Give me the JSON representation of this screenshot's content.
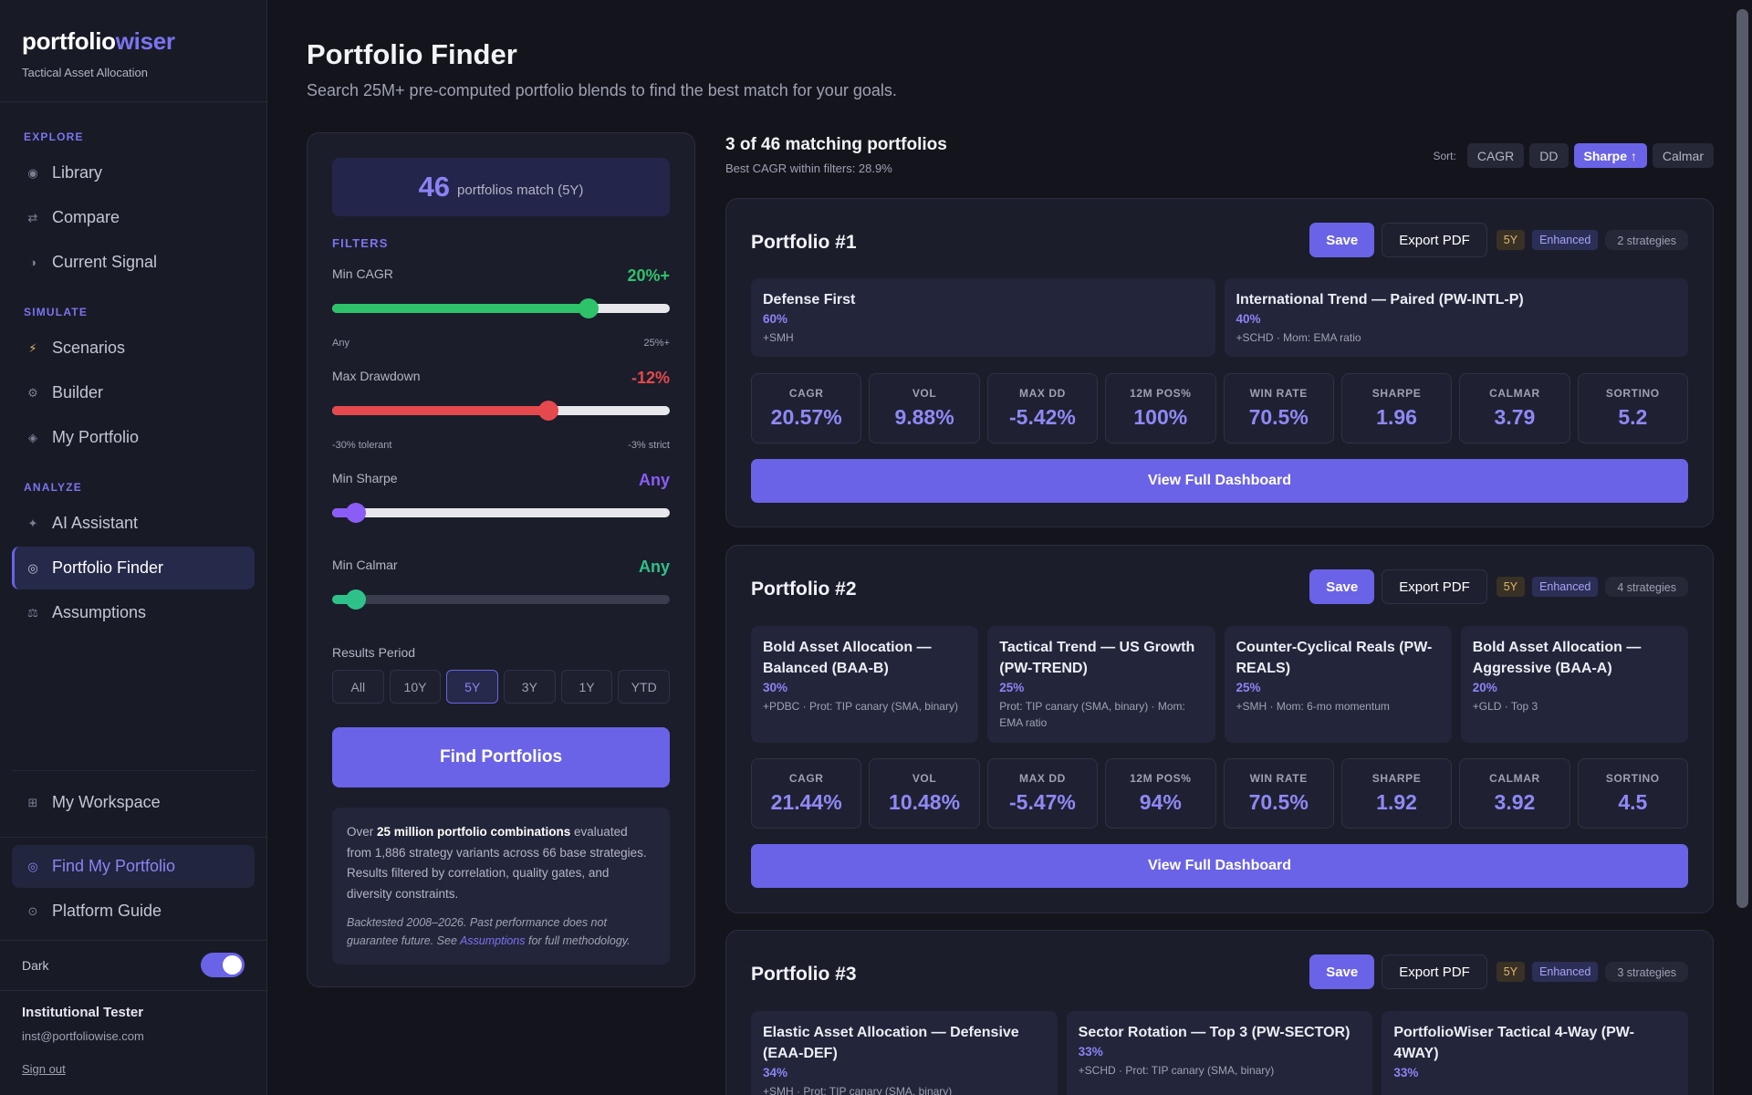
{
  "brand": {
    "part1": "portfolio",
    "part2": "wiser",
    "subtitle": "Tactical Asset Allocation"
  },
  "sidebar": {
    "sections": {
      "explore": "EXPLORE",
      "simulate": "SIMULATE",
      "analyze": "ANALYZE"
    },
    "items": [
      {
        "label": "Library",
        "icon": "radio-dot-icon"
      },
      {
        "label": "Compare",
        "icon": "swap-arrows-icon"
      },
      {
        "label": "Current Signal",
        "icon": "half-circle-icon"
      },
      {
        "label": "Scenarios",
        "icon": "lightning-icon"
      },
      {
        "label": "Builder",
        "icon": "gear-icon"
      },
      {
        "label": "My Portfolio",
        "icon": "diamond-icon"
      },
      {
        "label": "AI Assistant",
        "icon": "sparkle-icon"
      },
      {
        "label": "Portfolio Finder",
        "icon": "target-icon",
        "active": true
      },
      {
        "label": "Assumptions",
        "icon": "scale-icon"
      },
      {
        "label": "My Workspace",
        "icon": "grid-icon"
      },
      {
        "label": "Find My Portfolio",
        "icon": "target-icon"
      },
      {
        "label": "Platform Guide",
        "icon": "compass-icon"
      }
    ],
    "dark_label": "Dark",
    "dark_mode": true,
    "user_name": "Institutional Tester",
    "user_email": "inst@portfoliowise.com",
    "sign_out": "Sign out"
  },
  "header": {
    "title": "Portfolio Finder",
    "subtitle": "Search 25M+ pre-computed portfolio blends to find the best match for your goals."
  },
  "filters": {
    "match_count": "46",
    "match_text": "portfolios match (5Y)",
    "title": "FILTERS",
    "min_cagr": {
      "label": "Min CAGR",
      "value": "20%+",
      "level": 0.76,
      "left_note": "Any",
      "right_note": "25%+"
    },
    "max_drawdown": {
      "label": "Max Drawdown",
      "value": "-12%",
      "level": 0.64,
      "left_note": "-30% tolerant",
      "right_note": "-3% strict"
    },
    "min_sharpe": {
      "label": "Min Sharpe",
      "value": "Any",
      "level": 0.07
    },
    "min_calmar": {
      "label": "Min Calmar",
      "value": "Any",
      "level": 0.07
    },
    "period_label": "Results Period",
    "periods": [
      "All",
      "10Y",
      "5Y",
      "3Y",
      "1Y",
      "YTD"
    ],
    "active_period": "5Y",
    "find_button": "Find Portfolios",
    "info": {
      "pre": "Over ",
      "bold": "25 million portfolio combinations",
      "post": " evaluated from 1,886 strategy variants across 66 base strategies. Results filtered by correlation, quality gates, and diversity constraints.",
      "note_pre": "Backtested 2008–2026. Past performance does not guarantee future. See ",
      "note_link": "Assumptions",
      "note_post": " for full methodology."
    }
  },
  "results": {
    "heading": "3 of 46 matching portfolios",
    "subheading": "Best CAGR within filters: 28.9%",
    "sort_label": "Sort:",
    "sort_options": [
      "CAGR",
      "DD",
      "Sharpe ↑",
      "Calmar"
    ],
    "active_sort": "Sharpe ↑",
    "save_label": "Save",
    "export_label": "Export PDF",
    "period_tag": "5Y",
    "enhanced_tag": "Enhanced",
    "dashboard_label": "View Full Dashboard",
    "metric_labels": [
      "CAGR",
      "VOL",
      "MAX DD",
      "12M POS%",
      "WIN RATE",
      "SHARPE",
      "CALMAR",
      "SORTINO"
    ],
    "portfolios": [
      {
        "title": "Portfolio #1",
        "strategies_tag": "2 strategies",
        "strategies": [
          {
            "name": "Defense First",
            "pct": "60%",
            "meta": "+SMH"
          },
          {
            "name": "International Trend — Paired (PW-INTL-P)",
            "pct": "40%",
            "meta": "+SCHD · Mom: EMA ratio"
          }
        ],
        "metrics": [
          "20.57%",
          "9.88%",
          "-5.42%",
          "100%",
          "70.5%",
          "1.96",
          "3.79",
          "5.2"
        ]
      },
      {
        "title": "Portfolio #2",
        "strategies_tag": "4 strategies",
        "strategies": [
          {
            "name": "Bold Asset Allocation — Balanced (BAA-B)",
            "pct": "30%",
            "meta": "+PDBC · Prot: TIP canary (SMA, binary)"
          },
          {
            "name": "Tactical Trend — US Growth (PW-TREND)",
            "pct": "25%",
            "meta": "Prot: TIP canary (SMA, binary) · Mom: EMA ratio"
          },
          {
            "name": "Counter-Cyclical Reals (PW-REALS)",
            "pct": "25%",
            "meta": "+SMH · Mom: 6-mo momentum"
          },
          {
            "name": "Bold Asset Allocation — Aggressive (BAA-A)",
            "pct": "20%",
            "meta": "+GLD · Top 3"
          }
        ],
        "metrics": [
          "21.44%",
          "10.48%",
          "-5.47%",
          "94%",
          "70.5%",
          "1.92",
          "3.92",
          "4.5"
        ]
      },
      {
        "title": "Portfolio #3",
        "strategies_tag": "3 strategies",
        "strategies": [
          {
            "name": "Elastic Asset Allocation — Defensive (EAA-DEF)",
            "pct": "34%",
            "meta": "+SMH · Prot: TIP canary (SMA, binary)"
          },
          {
            "name": "Sector Rotation — Top 3 (PW-SECTOR)",
            "pct": "33%",
            "meta": "+SCHD · Prot: TIP canary (SMA, binary)"
          },
          {
            "name": "PortfolioWiser Tactical 4-Way (PW-4WAY)",
            "pct": "33%",
            "meta": ""
          }
        ]
      }
    ]
  },
  "colors": {
    "accent": "#6a63e8",
    "green": "#2ec26a",
    "red": "#e5484d",
    "purple_value": "#8b5cf6"
  }
}
